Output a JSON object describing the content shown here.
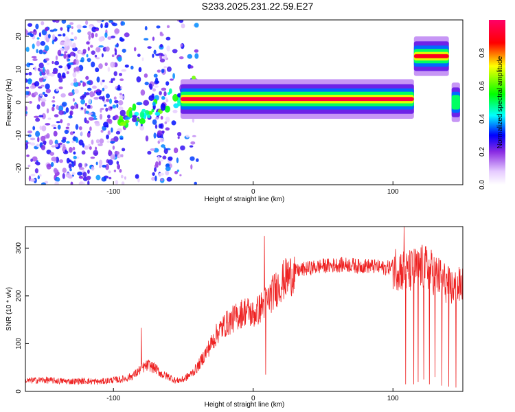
{
  "figure": {
    "title": "S233.2025.231.22.59.E27"
  },
  "chart_data": [
    {
      "type": "heatmap",
      "xlabel": "Height of straight line (km)",
      "ylabel": "Frequency (Hz)",
      "xlim": [
        -163,
        150
      ],
      "ylim": [
        -25,
        25
      ],
      "xticks": [
        -100,
        0,
        100
      ],
      "yticks": [
        -20,
        -10,
        0,
        10,
        20
      ],
      "colorbar": {
        "label": "Normalized spectral amplitude",
        "range": [
          0,
          1
        ],
        "ticks": [
          "0.0",
          "0.2",
          "0.4",
          "0.6",
          "0.8"
        ],
        "colormap": [
          "#ffffff",
          "#e6ccff",
          "#8a2be2",
          "#0000ff",
          "#00ffff",
          "#00ff00",
          "#ffff00",
          "#ff0000",
          "#ff0066"
        ]
      },
      "features": [
        {
          "label": "main band",
          "x_start": -52,
          "x_end": 115,
          "freq": 1,
          "amplitude": 0.95
        },
        {
          "label": "upper band",
          "x_start": 115,
          "x_end": 140,
          "freq": 14,
          "amplitude": 0.9
        },
        {
          "label": "edge band",
          "x_start": 142,
          "x_end": 148,
          "freq": 0,
          "amplitude": 0.5
        },
        {
          "label": "diagonal trace",
          "x_start": -95,
          "x_end": -40,
          "freq_start": -6,
          "freq_end": 5,
          "amplitude": 0.45
        },
        {
          "label": "noise region",
          "x_start": -163,
          "x_end": -40,
          "amplitude": 0.25
        }
      ]
    },
    {
      "type": "line",
      "xlabel": "Height of straight line (km)",
      "ylabel": "SNR (10 * v/v)",
      "xlim": [
        -163,
        150
      ],
      "ylim": [
        0,
        345
      ],
      "xticks": [
        -100,
        0,
        100
      ],
      "yticks": [
        0,
        100,
        200,
        300
      ],
      "color": "#ee2222",
      "x": [
        -163,
        -150,
        -140,
        -130,
        -120,
        -110,
        -100,
        -95,
        -90,
        -85,
        -80,
        -75,
        -70,
        -65,
        -60,
        -55,
        -50,
        -45,
        -40,
        -35,
        -30,
        -25,
        -20,
        -15,
        -10,
        -5,
        0,
        5,
        10,
        15,
        20,
        25,
        30,
        35,
        40,
        45,
        50,
        55,
        60,
        65,
        70,
        75,
        80,
        85,
        90,
        95,
        100,
        105,
        110,
        115,
        120,
        125,
        130,
        135,
        140,
        145,
        150
      ],
      "y": [
        22,
        24,
        22,
        21,
        22,
        20,
        24,
        25,
        28,
        35,
        48,
        55,
        48,
        35,
        30,
        22,
        25,
        35,
        50,
        75,
        100,
        125,
        140,
        150,
        160,
        170,
        160,
        175,
        190,
        210,
        228,
        240,
        250,
        255,
        258,
        260,
        263,
        263,
        265,
        265,
        265,
        262,
        263,
        262,
        260,
        258,
        262,
        258,
        248,
        255,
        260,
        258,
        245,
        235,
        220,
        215,
        225
      ],
      "spikes": [
        {
          "x": -80,
          "y": 133
        },
        {
          "x": 8,
          "y": 325
        },
        {
          "x": 9,
          "y": 35
        },
        {
          "x": 108,
          "y": 345
        },
        {
          "x": 109,
          "y": 15
        },
        {
          "x": 115,
          "y": 15
        },
        {
          "x": 118,
          "y": 20
        },
        {
          "x": 122,
          "y": 25
        },
        {
          "x": 126,
          "y": 15
        },
        {
          "x": 130,
          "y": 30
        },
        {
          "x": 135,
          "y": 12
        },
        {
          "x": 140,
          "y": 10
        },
        {
          "x": 145,
          "y": 8
        }
      ]
    }
  ]
}
